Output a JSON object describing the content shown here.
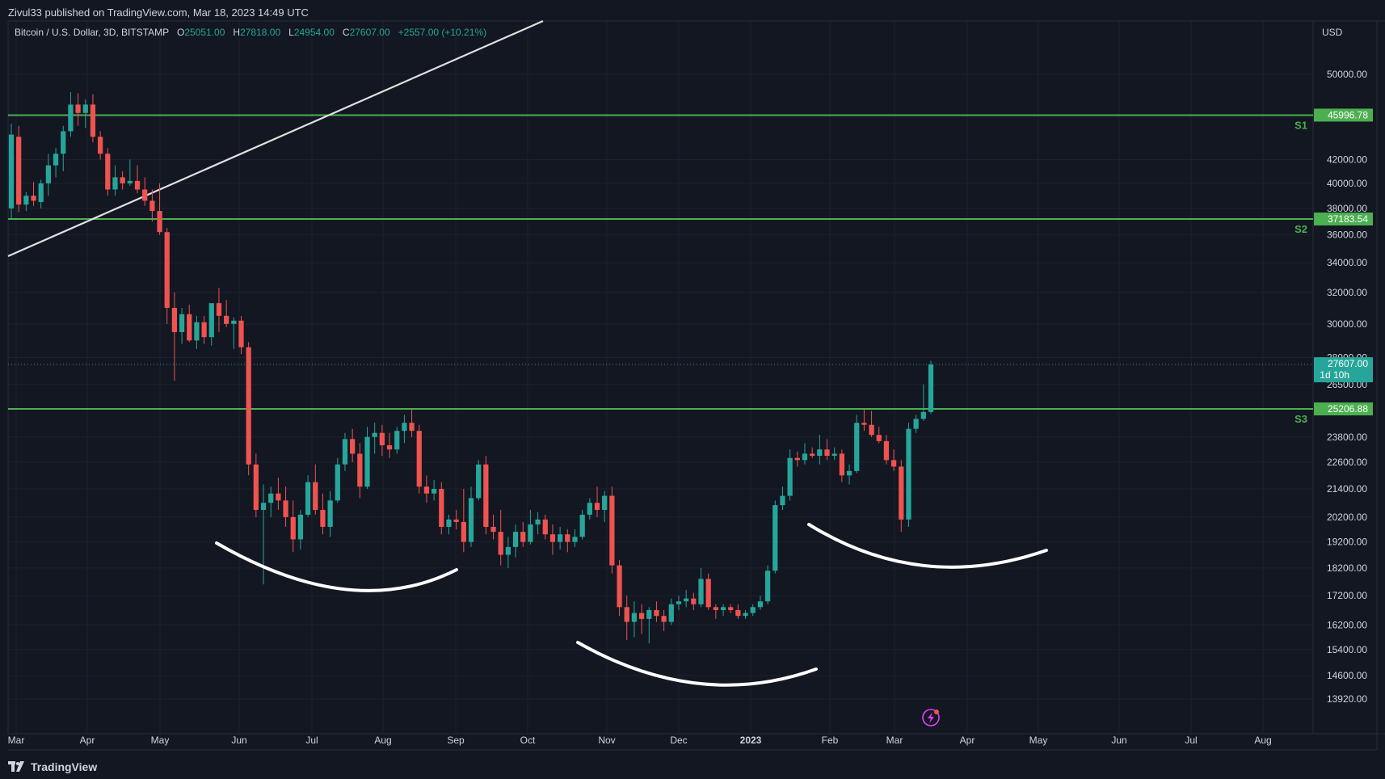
{
  "header": {
    "publisher": "Zivul33 published on TradingView.com, Mar 18, 2023 14:49 UTC"
  },
  "legend": {
    "symbol": "Bitcoin / U.S. Dollar, 3D, BITSTAMP",
    "open_label": "O",
    "open": "25051.00",
    "high_label": "H",
    "high": "27818.00",
    "low_label": "L",
    "low": "24954.00",
    "close_label": "C",
    "close": "27607.00",
    "change": "+2557.00 (+10.21%)"
  },
  "price_axis": {
    "currency": "USD",
    "ticks": [
      "50000.00",
      "42000.00",
      "40000.00",
      "38000.00",
      "36000.00",
      "34000.00",
      "32000.00",
      "30000.00",
      "28000.00",
      "26500.00",
      "23800.00",
      "22600.00",
      "21400.00",
      "20200.00",
      "19200.00",
      "18200.00",
      "17200.00",
      "16200.00",
      "15400.00",
      "14600.00",
      "13920.00"
    ]
  },
  "time_axis": {
    "ticks": [
      "Mar",
      "Apr",
      "May",
      "Jun",
      "Jul",
      "Aug",
      "Sep",
      "Oct",
      "Nov",
      "Dec",
      "2023",
      "Feb",
      "Mar",
      "Apr",
      "May",
      "Jun",
      "Jul",
      "Aug"
    ],
    "bold_tick": "2023"
  },
  "levels": [
    {
      "name": "S1",
      "price": 45996.78,
      "label": "45996.78"
    },
    {
      "name": "S2",
      "price": 37183.54,
      "label": "37183.54"
    },
    {
      "name": "S3",
      "price": 25206.88,
      "label": "25206.88"
    }
  ],
  "last_price": {
    "value": "27607.00",
    "countdown": "1d 10h"
  },
  "colors": {
    "background": "#131722",
    "up": "#26a69a",
    "down": "#ef5350",
    "level": "#4caf50",
    "trend": "#e0e0e0",
    "curve": "#ffffff",
    "grid": "#1e2230",
    "text": "#d1d4dc"
  },
  "chart_data": {
    "type": "candlestick",
    "symbol": "Bitcoin / U.S. Dollar",
    "interval": "3D",
    "scale": "log",
    "ylim": [
      13920,
      50000
    ],
    "x": [
      "Mar",
      "Apr",
      "May",
      "Jun",
      "Jul",
      "Aug",
      "Sep",
      "Oct",
      "Nov",
      "Dec",
      "2023",
      "Feb",
      "Mar"
    ],
    "candles": [
      {
        "o": 38000,
        "h": 45200,
        "l": 37200,
        "c": 44200
      },
      {
        "o": 44000,
        "h": 45000,
        "l": 37700,
        "c": 38300
      },
      {
        "o": 38300,
        "h": 39300,
        "l": 37800,
        "c": 39000
      },
      {
        "o": 39000,
        "h": 40100,
        "l": 38200,
        "c": 38600
      },
      {
        "o": 38500,
        "h": 40300,
        "l": 38000,
        "c": 40000
      },
      {
        "o": 40000,
        "h": 42500,
        "l": 39000,
        "c": 41500
      },
      {
        "o": 41500,
        "h": 43000,
        "l": 40500,
        "c": 42500
      },
      {
        "o": 42500,
        "h": 45000,
        "l": 41000,
        "c": 44500
      },
      {
        "o": 44500,
        "h": 48200,
        "l": 44000,
        "c": 47000
      },
      {
        "o": 47000,
        "h": 48100,
        "l": 45000,
        "c": 46200
      },
      {
        "o": 46200,
        "h": 47500,
        "l": 44800,
        "c": 47000
      },
      {
        "o": 47000,
        "h": 48000,
        "l": 43500,
        "c": 44000
      },
      {
        "o": 44000,
        "h": 44500,
        "l": 42000,
        "c": 42500
      },
      {
        "o": 42500,
        "h": 43000,
        "l": 39000,
        "c": 39500
      },
      {
        "o": 39500,
        "h": 41500,
        "l": 39000,
        "c": 40500
      },
      {
        "o": 40500,
        "h": 41000,
        "l": 39500,
        "c": 40000
      },
      {
        "o": 40000,
        "h": 42000,
        "l": 39800,
        "c": 40200
      },
      {
        "o": 40200,
        "h": 41500,
        "l": 39200,
        "c": 39500
      },
      {
        "o": 39500,
        "h": 40500,
        "l": 38200,
        "c": 38600
      },
      {
        "o": 38600,
        "h": 39500,
        "l": 37000,
        "c": 37800
      },
      {
        "o": 37800,
        "h": 40000,
        "l": 36000,
        "c": 36200
      },
      {
        "o": 36200,
        "h": 36500,
        "l": 30000,
        "c": 31000
      },
      {
        "o": 31000,
        "h": 32000,
        "l": 26700,
        "c": 29500
      },
      {
        "o": 29500,
        "h": 31000,
        "l": 28800,
        "c": 30600
      },
      {
        "o": 30600,
        "h": 31200,
        "l": 28900,
        "c": 29000
      },
      {
        "o": 29000,
        "h": 30500,
        "l": 28500,
        "c": 30100
      },
      {
        "o": 30100,
        "h": 30500,
        "l": 28800,
        "c": 29200
      },
      {
        "o": 29200,
        "h": 31200,
        "l": 28700,
        "c": 31300
      },
      {
        "o": 31300,
        "h": 32300,
        "l": 29500,
        "c": 30500
      },
      {
        "o": 30500,
        "h": 31500,
        "l": 29800,
        "c": 30000
      },
      {
        "o": 30000,
        "h": 30400,
        "l": 28500,
        "c": 30200
      },
      {
        "o": 30200,
        "h": 30500,
        "l": 28200,
        "c": 28600
      },
      {
        "o": 28600,
        "h": 28900,
        "l": 22000,
        "c": 22500
      },
      {
        "o": 22500,
        "h": 23000,
        "l": 20200,
        "c": 20500
      },
      {
        "o": 20500,
        "h": 21600,
        "l": 17600,
        "c": 20800
      },
      {
        "o": 20800,
        "h": 21500,
        "l": 20200,
        "c": 21200
      },
      {
        "o": 21200,
        "h": 21900,
        "l": 20500,
        "c": 20900
      },
      {
        "o": 20900,
        "h": 21500,
        "l": 19800,
        "c": 20200
      },
      {
        "o": 20200,
        "h": 20900,
        "l": 18800,
        "c": 19300
      },
      {
        "o": 19300,
        "h": 20500,
        "l": 18900,
        "c": 20300
      },
      {
        "o": 20300,
        "h": 22000,
        "l": 20200,
        "c": 21700
      },
      {
        "o": 21700,
        "h": 22500,
        "l": 20300,
        "c": 20500
      },
      {
        "o": 20500,
        "h": 21200,
        "l": 19500,
        "c": 19800
      },
      {
        "o": 19800,
        "h": 21300,
        "l": 19400,
        "c": 20900
      },
      {
        "o": 20900,
        "h": 22800,
        "l": 20800,
        "c": 22500
      },
      {
        "o": 22500,
        "h": 24000,
        "l": 22200,
        "c": 23700
      },
      {
        "o": 23700,
        "h": 24200,
        "l": 22600,
        "c": 23000
      },
      {
        "o": 23000,
        "h": 23500,
        "l": 21000,
        "c": 21500
      },
      {
        "o": 21500,
        "h": 24300,
        "l": 21400,
        "c": 23800
      },
      {
        "o": 23800,
        "h": 24500,
        "l": 23000,
        "c": 24000
      },
      {
        "o": 24000,
        "h": 24400,
        "l": 22900,
        "c": 23400
      },
      {
        "o": 23400,
        "h": 24000,
        "l": 22800,
        "c": 23200
      },
      {
        "o": 23200,
        "h": 24300,
        "l": 23000,
        "c": 24100
      },
      {
        "o": 24100,
        "h": 24900,
        "l": 23500,
        "c": 24500
      },
      {
        "o": 24500,
        "h": 25200,
        "l": 23800,
        "c": 24100
      },
      {
        "o": 24100,
        "h": 24400,
        "l": 21200,
        "c": 21500
      },
      {
        "o": 21500,
        "h": 22000,
        "l": 20800,
        "c": 21200
      },
      {
        "o": 21200,
        "h": 21800,
        "l": 20900,
        "c": 21400
      },
      {
        "o": 21400,
        "h": 21700,
        "l": 19500,
        "c": 19800
      },
      {
        "o": 19800,
        "h": 20300,
        "l": 19500,
        "c": 20100
      },
      {
        "o": 20100,
        "h": 20500,
        "l": 19700,
        "c": 20000
      },
      {
        "o": 20000,
        "h": 21400,
        "l": 18800,
        "c": 19200
      },
      {
        "o": 19200,
        "h": 21500,
        "l": 19000,
        "c": 21000
      },
      {
        "o": 21000,
        "h": 22700,
        "l": 20900,
        "c": 22500
      },
      {
        "o": 22500,
        "h": 22900,
        "l": 19500,
        "c": 19800
      },
      {
        "o": 19800,
        "h": 20300,
        "l": 19300,
        "c": 19600
      },
      {
        "o": 19600,
        "h": 20500,
        "l": 18300,
        "c": 18700
      },
      {
        "o": 18700,
        "h": 19400,
        "l": 18200,
        "c": 19000
      },
      {
        "o": 19000,
        "h": 19900,
        "l": 18600,
        "c": 19600
      },
      {
        "o": 19600,
        "h": 20000,
        "l": 19000,
        "c": 19200
      },
      {
        "o": 19200,
        "h": 20500,
        "l": 19100,
        "c": 19900
      },
      {
        "o": 19900,
        "h": 20400,
        "l": 19500,
        "c": 20100
      },
      {
        "o": 20100,
        "h": 20300,
        "l": 19300,
        "c": 19500
      },
      {
        "o": 19500,
        "h": 19900,
        "l": 18700,
        "c": 19200
      },
      {
        "o": 19200,
        "h": 19800,
        "l": 18900,
        "c": 19500
      },
      {
        "o": 19500,
        "h": 19700,
        "l": 18800,
        "c": 19200
      },
      {
        "o": 19200,
        "h": 19700,
        "l": 19000,
        "c": 19400
      },
      {
        "o": 19400,
        "h": 20500,
        "l": 19300,
        "c": 20300
      },
      {
        "o": 20300,
        "h": 21000,
        "l": 20100,
        "c": 20800
      },
      {
        "o": 20800,
        "h": 21500,
        "l": 20200,
        "c": 20500
      },
      {
        "o": 20500,
        "h": 21300,
        "l": 20000,
        "c": 21100
      },
      {
        "o": 21100,
        "h": 21500,
        "l": 18000,
        "c": 18300
      },
      {
        "o": 18300,
        "h": 18500,
        "l": 16500,
        "c": 16800
      },
      {
        "o": 16800,
        "h": 17200,
        "l": 15700,
        "c": 16300
      },
      {
        "o": 16300,
        "h": 17000,
        "l": 15800,
        "c": 16600
      },
      {
        "o": 16600,
        "h": 16900,
        "l": 15900,
        "c": 16400
      },
      {
        "o": 16400,
        "h": 16800,
        "l": 15600,
        "c": 16700
      },
      {
        "o": 16700,
        "h": 17000,
        "l": 16300,
        "c": 16500
      },
      {
        "o": 16500,
        "h": 16700,
        "l": 16000,
        "c": 16300
      },
      {
        "o": 16300,
        "h": 17100,
        "l": 16200,
        "c": 16900
      },
      {
        "o": 16900,
        "h": 17200,
        "l": 16700,
        "c": 17000
      },
      {
        "o": 17000,
        "h": 17400,
        "l": 16800,
        "c": 17100
      },
      {
        "o": 17100,
        "h": 17300,
        "l": 16700,
        "c": 16900
      },
      {
        "o": 16900,
        "h": 18200,
        "l": 16800,
        "c": 17800
      },
      {
        "o": 17800,
        "h": 18000,
        "l": 16700,
        "c": 16800
      },
      {
        "o": 16800,
        "h": 16900,
        "l": 16400,
        "c": 16700
      },
      {
        "o": 16700,
        "h": 16900,
        "l": 16500,
        "c": 16800
      },
      {
        "o": 16800,
        "h": 16900,
        "l": 16600,
        "c": 16700
      },
      {
        "o": 16700,
        "h": 16900,
        "l": 16400,
        "c": 16500
      },
      {
        "o": 16500,
        "h": 16700,
        "l": 16400,
        "c": 16600
      },
      {
        "o": 16600,
        "h": 16900,
        "l": 16500,
        "c": 16800
      },
      {
        "o": 16800,
        "h": 17200,
        "l": 16700,
        "c": 17000
      },
      {
        "o": 17000,
        "h": 18300,
        "l": 16900,
        "c": 18100
      },
      {
        "o": 18100,
        "h": 20900,
        "l": 18000,
        "c": 20700
      },
      {
        "o": 20700,
        "h": 21500,
        "l": 20500,
        "c": 21100
      },
      {
        "o": 21100,
        "h": 23200,
        "l": 20900,
        "c": 22800
      },
      {
        "o": 22800,
        "h": 23100,
        "l": 22400,
        "c": 22700
      },
      {
        "o": 22700,
        "h": 23500,
        "l": 22500,
        "c": 23000
      },
      {
        "o": 23000,
        "h": 23300,
        "l": 22800,
        "c": 22900
      },
      {
        "o": 22900,
        "h": 23900,
        "l": 22500,
        "c": 23200
      },
      {
        "o": 23200,
        "h": 23700,
        "l": 22700,
        "c": 22900
      },
      {
        "o": 22900,
        "h": 23300,
        "l": 22700,
        "c": 23000
      },
      {
        "o": 23000,
        "h": 23200,
        "l": 21700,
        "c": 22000
      },
      {
        "o": 22000,
        "h": 22500,
        "l": 21600,
        "c": 22200
      },
      {
        "o": 22200,
        "h": 24900,
        "l": 22100,
        "c": 24500
      },
      {
        "o": 24500,
        "h": 25200,
        "l": 24100,
        "c": 24400
      },
      {
        "o": 24400,
        "h": 25100,
        "l": 23800,
        "c": 23900
      },
      {
        "o": 23900,
        "h": 24300,
        "l": 23500,
        "c": 23600
      },
      {
        "o": 23600,
        "h": 23900,
        "l": 22500,
        "c": 22700
      },
      {
        "o": 22700,
        "h": 23200,
        "l": 22200,
        "c": 22400
      },
      {
        "o": 22400,
        "h": 22700,
        "l": 19600,
        "c": 20100
      },
      {
        "o": 20100,
        "h": 24500,
        "l": 19800,
        "c": 24200
      },
      {
        "o": 24200,
        "h": 24900,
        "l": 24000,
        "c": 24700
      },
      {
        "o": 24700,
        "h": 26500,
        "l": 24600,
        "c": 25050
      },
      {
        "o": 25051,
        "h": 27818,
        "l": 24954,
        "c": 27607
      }
    ]
  }
}
